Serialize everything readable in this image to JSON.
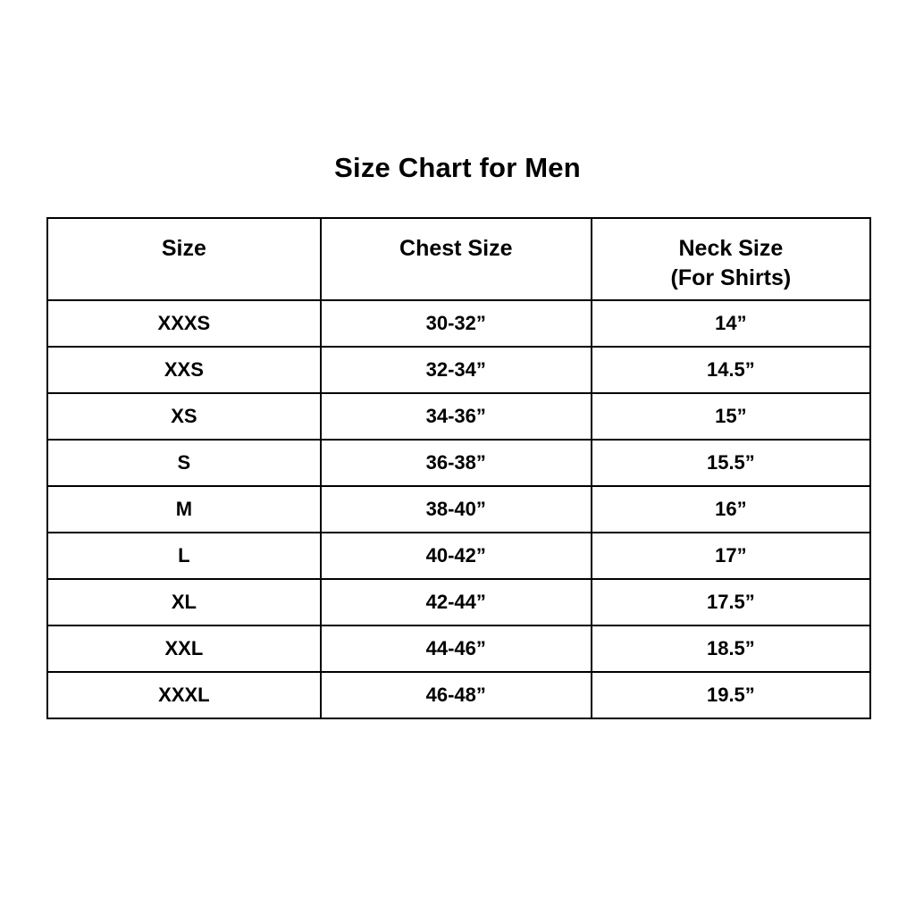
{
  "page": {
    "title": "Size Chart for Men",
    "background_color": "#ffffff",
    "text_color": "#000000",
    "border_color": "#000000"
  },
  "table": {
    "headers": {
      "size": "Size",
      "chest": "Chest Size",
      "neck_line1": "Neck Size",
      "neck_line2": "(For Shirts)"
    },
    "rows": [
      {
        "size": "XXXS",
        "chest": "30-32”",
        "neck": "14”"
      },
      {
        "size": "XXS",
        "chest": "32-34”",
        "neck": "14.5”"
      },
      {
        "size": "XS",
        "chest": "34-36”",
        "neck": "15”"
      },
      {
        "size": "S",
        "chest": "36-38”",
        "neck": "15.5”"
      },
      {
        "size": "M",
        "chest": "38-40”",
        "neck": "16”"
      },
      {
        "size": "L",
        "chest": "40-42”",
        "neck": "17”"
      },
      {
        "size": "XL",
        "chest": "42-44”",
        "neck": "17.5”"
      },
      {
        "size": "XXL",
        "chest": "44-46”",
        "neck": "18.5”"
      },
      {
        "size": "XXXL",
        "chest": "46-48”",
        "neck": "19.5”"
      }
    ]
  },
  "chart_data": {
    "type": "table",
    "title": "Size Chart for Men",
    "columns": [
      "Size",
      "Chest Size",
      "Neck Size (For Shirts)"
    ],
    "rows": [
      [
        "XXXS",
        "30-32”",
        "14”"
      ],
      [
        "XXS",
        "32-34”",
        "14.5”"
      ],
      [
        "XS",
        "34-36”",
        "15”"
      ],
      [
        "S",
        "36-38”",
        "15.5”"
      ],
      [
        "M",
        "38-40”",
        "16”"
      ],
      [
        "L",
        "40-42”",
        "17”"
      ],
      [
        "XL",
        "42-44”",
        "17.5”"
      ],
      [
        "XXL",
        "44-46”",
        "18.5”"
      ],
      [
        "XXXL",
        "46-48”",
        "19.5”"
      ]
    ]
  }
}
